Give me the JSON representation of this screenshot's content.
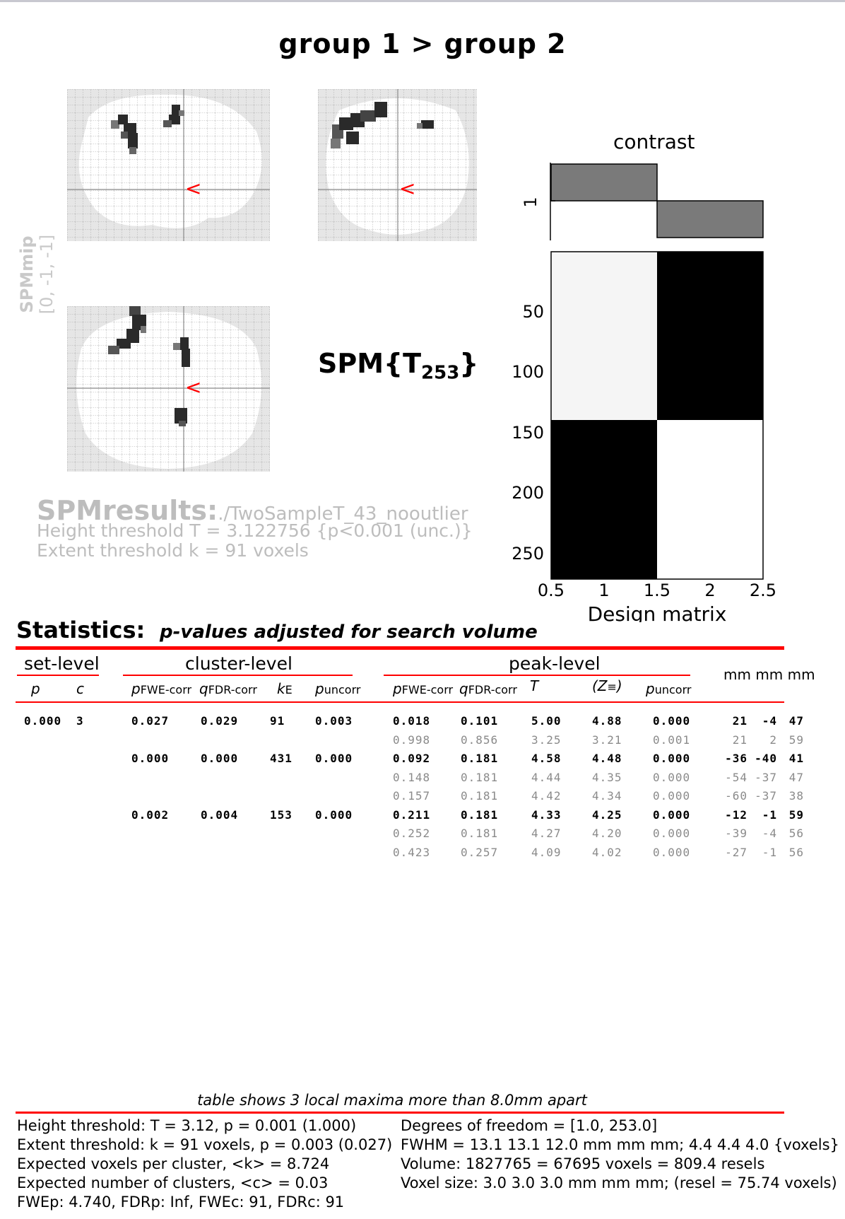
{
  "title": "group 1 > group 2",
  "side_label": {
    "line1": "SPMmip",
    "line2": "[0, -1, -1]"
  },
  "spm_symbol": {
    "main": "SPM{T",
    "sub": "253",
    "close": "}"
  },
  "results": {
    "label": "SPMresults:",
    "path": "./TwoSampleT_43_nooutlier",
    "height": "Height threshold T = 3.122756  {p<0.001 (unc.)}",
    "extent": "Extent threshold k = 91 voxels"
  },
  "contrast_label": "contrast",
  "contrast_tick": "1",
  "design": {
    "y_ticks": [
      "50",
      "100",
      "150",
      "200",
      "250"
    ],
    "x_ticks": [
      "0.5",
      "1",
      "1.5",
      "2",
      "2.5"
    ],
    "xlabel": "Design matrix"
  },
  "stats": {
    "title": "Statistics:",
    "subtitle": "p-values adjusted for search volume",
    "group_headers": {
      "set": "set-level",
      "cluster": "cluster-level",
      "peak": "peak-level",
      "mm": "mm mm mm"
    },
    "sub_headers": {
      "set_p": "p",
      "set_c": "c",
      "cl_pfwe": "p",
      "cl_pfwe_sub": "FWE-corr",
      "cl_qfdr": "q",
      "cl_qfdr_sub": "FDR-corr",
      "cl_ke": "k",
      "cl_ke_sub": "E",
      "cl_punc": "p",
      "cl_punc_sub": "uncorr",
      "pk_pfwe": "p",
      "pk_pfwe_sub": "FWE-corr",
      "pk_qfdr": "q",
      "pk_qfdr_sub": "FDR-corr",
      "pk_t": "T",
      "pk_z": "(Z",
      "pk_z_sub": "≡",
      "pk_z_close": ")",
      "pk_punc": "p",
      "pk_punc_sub": "uncorr"
    },
    "rows": [
      {
        "bold": true,
        "set_p": "0.000",
        "set_c": "3",
        "cl_pfwe": "0.027",
        "cl_qfdr": "0.029",
        "cl_ke": "91",
        "cl_punc": "0.003",
        "pk_pfwe": "0.018",
        "pk_qfdr": "0.101",
        "t": "5.00",
        "z": "4.88",
        "pk_punc": "0.000",
        "x": "21",
        "y": "-4",
        "zz": "47"
      },
      {
        "bold": false,
        "set_p": "",
        "set_c": "",
        "cl_pfwe": "",
        "cl_qfdr": "",
        "cl_ke": "",
        "cl_punc": "",
        "pk_pfwe": "0.998",
        "pk_qfdr": "0.856",
        "t": "3.25",
        "z": "3.21",
        "pk_punc": "0.001",
        "x": "21",
        "y": "2",
        "zz": "59"
      },
      {
        "bold": true,
        "set_p": "",
        "set_c": "",
        "cl_pfwe": "0.000",
        "cl_qfdr": "0.000",
        "cl_ke": "431",
        "cl_punc": "0.000",
        "pk_pfwe": "0.092",
        "pk_qfdr": "0.181",
        "t": "4.58",
        "z": "4.48",
        "pk_punc": "0.000",
        "x": "-36",
        "y": "-40",
        "zz": "41"
      },
      {
        "bold": false,
        "set_p": "",
        "set_c": "",
        "cl_pfwe": "",
        "cl_qfdr": "",
        "cl_ke": "",
        "cl_punc": "",
        "pk_pfwe": "0.148",
        "pk_qfdr": "0.181",
        "t": "4.44",
        "z": "4.35",
        "pk_punc": "0.000",
        "x": "-54",
        "y": "-37",
        "zz": "47"
      },
      {
        "bold": false,
        "set_p": "",
        "set_c": "",
        "cl_pfwe": "",
        "cl_qfdr": "",
        "cl_ke": "",
        "cl_punc": "",
        "pk_pfwe": "0.157",
        "pk_qfdr": "0.181",
        "t": "4.42",
        "z": "4.34",
        "pk_punc": "0.000",
        "x": "-60",
        "y": "-37",
        "zz": "38"
      },
      {
        "bold": true,
        "set_p": "",
        "set_c": "",
        "cl_pfwe": "0.002",
        "cl_qfdr": "0.004",
        "cl_ke": "153",
        "cl_punc": "0.000",
        "pk_pfwe": "0.211",
        "pk_qfdr": "0.181",
        "t": "4.33",
        "z": "4.25",
        "pk_punc": "0.000",
        "x": "-12",
        "y": "-1",
        "zz": "59"
      },
      {
        "bold": false,
        "set_p": "",
        "set_c": "",
        "cl_pfwe": "",
        "cl_qfdr": "",
        "cl_ke": "",
        "cl_punc": "",
        "pk_pfwe": "0.252",
        "pk_qfdr": "0.181",
        "t": "4.27",
        "z": "4.20",
        "pk_punc": "0.000",
        "x": "-39",
        "y": "-4",
        "zz": "56"
      },
      {
        "bold": false,
        "set_p": "",
        "set_c": "",
        "cl_pfwe": "",
        "cl_qfdr": "",
        "cl_ke": "",
        "cl_punc": "",
        "pk_pfwe": "0.423",
        "pk_qfdr": "0.257",
        "t": "4.09",
        "z": "4.02",
        "pk_punc": "0.000",
        "x": "-27",
        "y": "-1",
        "zz": "56"
      }
    ]
  },
  "footer": {
    "note": "table shows 3 local maxima more than 8.0mm apart",
    "left": [
      "Height threshold: T = 3.12, p = 0.001 (1.000)",
      "Extent threshold: k = 91 voxels, p = 0.003 (0.027)",
      "Expected voxels per cluster, <k> = 8.724",
      "Expected number of clusters, <c> = 0.03",
      "FWEp: 4.740, FDRp: Inf, FWEc: 91, FDRc: 91"
    ],
    "right": [
      "Degrees of freedom = [1.0, 253.0]",
      "FWHM = 13.1 13.1 12.0 mm mm mm; 4.4 4.4 4.0 {voxels}",
      "Volume: 1827765 = 67695 voxels = 809.4 resels",
      "Voxel size: 3.0 3.0 3.0 mm mm mm; (resel = 75.74 voxels)"
    ]
  },
  "colors": {
    "red": "#ff0000",
    "grid_bg": "#e6e6e6",
    "brain": "#ffffff",
    "blob": "#1a1a1a",
    "gray_text": "#bdbdbd"
  }
}
